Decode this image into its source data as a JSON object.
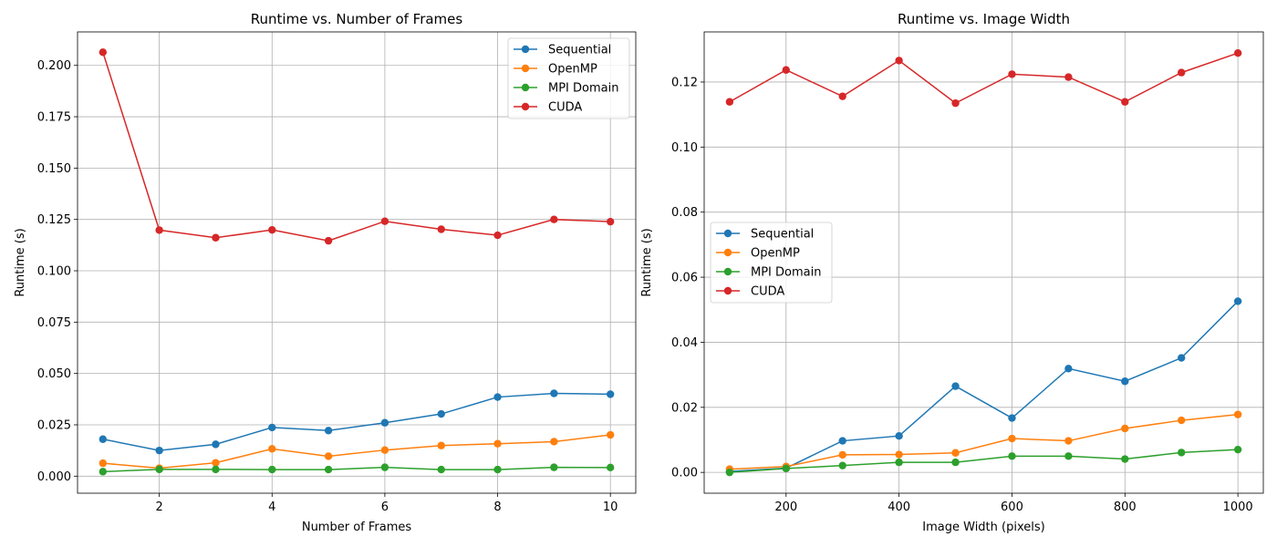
{
  "chart_data": [
    {
      "type": "line",
      "title": "Runtime vs. Number of Frames",
      "xlabel": "Number of Frames",
      "ylabel": "Runtime (s)",
      "xlim": [
        0.55,
        10.45
      ],
      "ylim": [
        -0.0083,
        0.2163
      ],
      "x_ticks": [
        2,
        4,
        6,
        8,
        10
      ],
      "x_tick_labels": [
        "2",
        "4",
        "6",
        "8",
        "10"
      ],
      "y_ticks": [
        0,
        0.025,
        0.05,
        0.075,
        0.1,
        0.125,
        0.15,
        0.175,
        0.2
      ],
      "y_tick_labels": [
        "0.000",
        "0.025",
        "0.050",
        "0.075",
        "0.100",
        "0.125",
        "0.150",
        "0.175",
        "0.200"
      ],
      "grid": true,
      "legend_position": "upper right",
      "x": [
        1,
        2,
        3,
        4,
        5,
        6,
        7,
        8,
        9,
        10
      ],
      "series": [
        {
          "name": "Sequential",
          "color": "#1f77b4",
          "values": [
            0.018,
            0.0125,
            0.0155,
            0.0237,
            0.0222,
            0.026,
            0.0303,
            0.0385,
            0.0403,
            0.0399
          ]
        },
        {
          "name": "OpenMP",
          "color": "#ff7f0e",
          "values": [
            0.0063,
            0.0039,
            0.0065,
            0.0133,
            0.0097,
            0.0127,
            0.0149,
            0.0158,
            0.0168,
            0.0201
          ]
        },
        {
          "name": "MPI Domain",
          "color": "#2ca02c",
          "values": [
            0.0022,
            0.0033,
            0.0033,
            0.0032,
            0.0032,
            0.0043,
            0.0032,
            0.0032,
            0.0043,
            0.0042
          ]
        },
        {
          "name": "CUDA",
          "color": "#d62728",
          "values": [
            0.2064,
            0.1198,
            0.1161,
            0.1199,
            0.1146,
            0.1241,
            0.1202,
            0.1173,
            0.125,
            0.1239
          ]
        }
      ]
    },
    {
      "type": "line",
      "title": "Runtime vs. Image Width",
      "xlabel": "Image Width (pixels)",
      "ylabel": "Runtime (s)",
      "xlim": [
        55,
        1045
      ],
      "ylim": [
        -0.0064,
        0.1354
      ],
      "x_ticks": [
        200,
        400,
        600,
        800,
        1000
      ],
      "x_tick_labels": [
        "200",
        "400",
        "600",
        "800",
        "1000"
      ],
      "y_ticks": [
        0,
        0.02,
        0.04,
        0.06,
        0.08,
        0.1,
        0.12
      ],
      "y_tick_labels": [
        "0.00",
        "0.02",
        "0.04",
        "0.06",
        "0.08",
        "0.10",
        "0.12"
      ],
      "grid": true,
      "legend_position": "center left",
      "x": [
        100,
        200,
        300,
        400,
        500,
        600,
        700,
        800,
        900,
        1000
      ],
      "series": [
        {
          "name": "Sequential",
          "color": "#1f77b4",
          "values": [
            0.0003,
            0.0013,
            0.0097,
            0.0112,
            0.0265,
            0.0167,
            0.0319,
            0.028,
            0.0352,
            0.0526
          ]
        },
        {
          "name": "OpenMP",
          "color": "#ff7f0e",
          "values": [
            0.001,
            0.0018,
            0.0054,
            0.0055,
            0.006,
            0.0104,
            0.0097,
            0.0135,
            0.016,
            0.0178
          ]
        },
        {
          "name": "MPI Domain",
          "color": "#2ca02c",
          "values": [
            0.0,
            0.0012,
            0.0021,
            0.0031,
            0.0031,
            0.005,
            0.005,
            0.0041,
            0.0061,
            0.007
          ]
        },
        {
          "name": "CUDA",
          "color": "#d62728",
          "values": [
            0.1139,
            0.1237,
            0.1156,
            0.1266,
            0.1135,
            0.1224,
            0.1215,
            0.1139,
            0.1229,
            0.1289
          ]
        }
      ]
    }
  ]
}
